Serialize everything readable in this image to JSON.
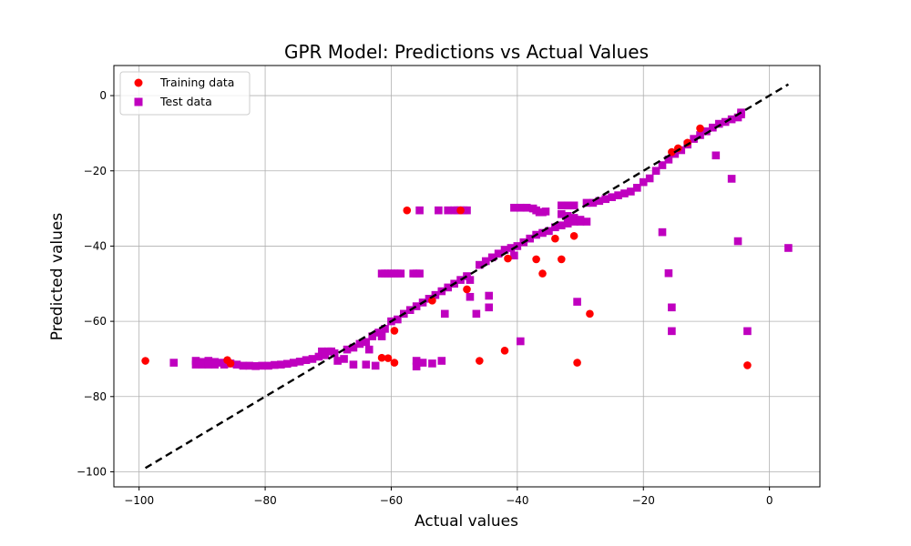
{
  "chart_data": {
    "type": "scatter",
    "title": "GPR Model: Predictions vs Actual Values",
    "xlabel": "Actual values",
    "ylabel": "Predicted values",
    "xlim": [
      -104,
      8
    ],
    "ylim": [
      -104,
      8
    ],
    "xticks": [
      -100,
      -80,
      -60,
      -40,
      -20,
      0
    ],
    "yticks": [
      -100,
      -80,
      -60,
      -40,
      -20,
      0
    ],
    "grid": true,
    "legend": {
      "placement": "top-left"
    },
    "reference_line": {
      "style": "dashed",
      "color": "#000000",
      "from": [
        -99,
        -99
      ],
      "to": [
        3,
        3
      ]
    },
    "series": [
      {
        "name": "Training data",
        "marker": "circle",
        "color": "#ff0000",
        "points": [
          [
            -99,
            -70.5
          ],
          [
            -86,
            -70.3
          ],
          [
            -85.5,
            -71.2
          ],
          [
            -61.5,
            -69.7
          ],
          [
            -60.5,
            -69.8
          ],
          [
            -59.5,
            -71
          ],
          [
            -59.5,
            -62.5
          ],
          [
            -57.5,
            -30.5
          ],
          [
            -53.5,
            -54.5
          ],
          [
            -48,
            -51.5
          ],
          [
            -46,
            -70.5
          ],
          [
            -42,
            -67.8
          ],
          [
            -41.5,
            -43.3
          ],
          [
            -37,
            -43.5
          ],
          [
            -36,
            -47.3
          ],
          [
            -34,
            -38
          ],
          [
            -33,
            -43.5
          ],
          [
            -31,
            -37.3
          ],
          [
            -30.5,
            -71
          ],
          [
            -28.5,
            -58
          ],
          [
            -49,
            -30.5
          ],
          [
            -15.5,
            -15
          ],
          [
            -14.5,
            -14
          ],
          [
            -13,
            -12.5
          ],
          [
            -11,
            -8.7
          ],
          [
            -3.5,
            -71.7
          ]
        ]
      },
      {
        "name": "Test data",
        "marker": "square",
        "color": "#bf00bf",
        "points": [
          [
            -94.5,
            -71
          ],
          [
            -91,
            -70.5
          ],
          [
            -91,
            -71.5
          ],
          [
            -90,
            -70.8
          ],
          [
            -90,
            -71.5
          ],
          [
            -89,
            -70.5
          ],
          [
            -89,
            -71.5
          ],
          [
            -88,
            -70.8
          ],
          [
            -88,
            -71.5
          ],
          [
            -87,
            -71
          ],
          [
            -86.5,
            -71.5
          ],
          [
            -85.5,
            -71.2
          ],
          [
            -84.5,
            -71.5
          ],
          [
            -83.5,
            -71.8
          ],
          [
            -82.5,
            -71.8
          ],
          [
            -81.5,
            -71.9
          ],
          [
            -80.5,
            -71.8
          ],
          [
            -79.5,
            -71.8
          ],
          [
            -78.5,
            -71.6
          ],
          [
            -77.5,
            -71.5
          ],
          [
            -76.5,
            -71.3
          ],
          [
            -75.5,
            -71
          ],
          [
            -74.5,
            -70.7
          ],
          [
            -73.5,
            -70.3
          ],
          [
            -72.5,
            -70
          ],
          [
            -71.5,
            -69.4
          ],
          [
            -71,
            -68
          ],
          [
            -70.5,
            -69
          ],
          [
            -70,
            -68
          ],
          [
            -69.5,
            -68
          ],
          [
            -69,
            -68.5
          ],
          [
            -68.5,
            -70.5
          ],
          [
            -67.5,
            -70
          ],
          [
            -67,
            -67.5
          ],
          [
            -66,
            -67
          ],
          [
            -66,
            -71.5
          ],
          [
            -65,
            -66
          ],
          [
            -64,
            -65.5
          ],
          [
            -64,
            -71.5
          ],
          [
            -63.5,
            -67.5
          ],
          [
            -63,
            -64
          ],
          [
            -62.5,
            -71.8
          ],
          [
            -62,
            -63
          ],
          [
            -61.5,
            -64
          ],
          [
            -61,
            -62
          ],
          [
            -61.5,
            -47.3
          ],
          [
            -61,
            -47.3
          ],
          [
            -60.5,
            -47.3
          ],
          [
            -60,
            -47.3
          ],
          [
            -59.5,
            -47.3
          ],
          [
            -59,
            -47.3
          ],
          [
            -58.5,
            -47.3
          ],
          [
            -60,
            -60
          ],
          [
            -59,
            -59.5
          ],
          [
            -58,
            -58
          ],
          [
            -57,
            -57
          ],
          [
            -56,
            -56
          ],
          [
            -55,
            -55
          ],
          [
            -54,
            -54
          ],
          [
            -53,
            -53
          ],
          [
            -52,
            -52
          ],
          [
            -51,
            -51
          ],
          [
            -50,
            -50
          ],
          [
            -49,
            -49
          ],
          [
            -48,
            -48
          ],
          [
            -56.5,
            -47.3
          ],
          [
            -56,
            -47.3
          ],
          [
            -55.5,
            -47.3
          ],
          [
            -55.5,
            -30.5
          ],
          [
            -52.5,
            -30.5
          ],
          [
            -51,
            -30.5
          ],
          [
            -50,
            -30.5
          ],
          [
            -49.5,
            -30.5
          ],
          [
            -49,
            -30.5
          ],
          [
            -48.5,
            -30.5
          ],
          [
            -48,
            -30.5
          ],
          [
            -56,
            -72
          ],
          [
            -56,
            -70.5
          ],
          [
            -55,
            -71
          ],
          [
            -53.5,
            -71.2
          ],
          [
            -52,
            -70.5
          ],
          [
            -51.5,
            -58
          ],
          [
            -47.5,
            -49
          ],
          [
            -47.5,
            -53.5
          ],
          [
            -46.5,
            -58
          ],
          [
            -46,
            -45
          ],
          [
            -45,
            -44
          ],
          [
            -44,
            -43
          ],
          [
            -43,
            -42
          ],
          [
            -42,
            -41
          ],
          [
            -41,
            -40.5
          ],
          [
            -40,
            -40
          ],
          [
            -39,
            -39
          ],
          [
            -38,
            -38
          ],
          [
            -37,
            -37
          ],
          [
            -36,
            -36.5
          ],
          [
            -35,
            -36
          ],
          [
            -34,
            -35
          ],
          [
            -33,
            -34.5
          ],
          [
            -32,
            -34
          ],
          [
            -31,
            -33.5
          ],
          [
            -30,
            -33.5
          ],
          [
            -29,
            -33.5
          ],
          [
            -44.5,
            -53.2
          ],
          [
            -44.5,
            -56.3
          ],
          [
            -39.5,
            -65.3
          ],
          [
            -40.5,
            -42.5
          ],
          [
            -40.5,
            -29.8
          ],
          [
            -39.5,
            -29.8
          ],
          [
            -38.5,
            -29.8
          ],
          [
            -37.5,
            -30
          ],
          [
            -37,
            -30.5
          ],
          [
            -36.5,
            -31
          ],
          [
            -36,
            -31
          ],
          [
            -35.5,
            -30.8
          ],
          [
            -33,
            -29.2
          ],
          [
            -32,
            -29.2
          ],
          [
            -31,
            -29.2
          ],
          [
            -33,
            -31.5
          ],
          [
            -32,
            -32
          ],
          [
            -31,
            -32.5
          ],
          [
            -30,
            -33
          ],
          [
            -29,
            -28.5
          ],
          [
            -28,
            -28.5
          ],
          [
            -27,
            -28
          ],
          [
            -26,
            -27.5
          ],
          [
            -25,
            -27
          ],
          [
            -24,
            -26.5
          ],
          [
            -23,
            -26
          ],
          [
            -22,
            -25.5
          ],
          [
            -21,
            -24.5
          ],
          [
            -20,
            -23
          ],
          [
            -19,
            -22
          ],
          [
            -18,
            -20
          ],
          [
            -17,
            -18.5
          ],
          [
            -16,
            -17
          ],
          [
            -15,
            -15.5
          ],
          [
            -14,
            -14.5
          ],
          [
            -13,
            -13
          ],
          [
            -12,
            -11.5
          ],
          [
            -11,
            -10.5
          ],
          [
            -10,
            -9.5
          ],
          [
            -9,
            -8.5
          ],
          [
            -8,
            -7.5
          ],
          [
            -7,
            -7
          ],
          [
            -6,
            -6.3
          ],
          [
            -5,
            -5.8
          ],
          [
            -4.5,
            -5
          ],
          [
            -4.5,
            -4.5
          ],
          [
            -30.5,
            -54.8
          ],
          [
            -17,
            -36.3
          ],
          [
            -16,
            -47.2
          ],
          [
            -15.5,
            -56.3
          ],
          [
            -15.5,
            -62.6
          ],
          [
            -8.5,
            -15.9
          ],
          [
            -6,
            -22.1
          ],
          [
            -5,
            -38.7
          ],
          [
            -3.5,
            -62.6
          ],
          [
            3,
            -40.5
          ]
        ]
      }
    ]
  }
}
